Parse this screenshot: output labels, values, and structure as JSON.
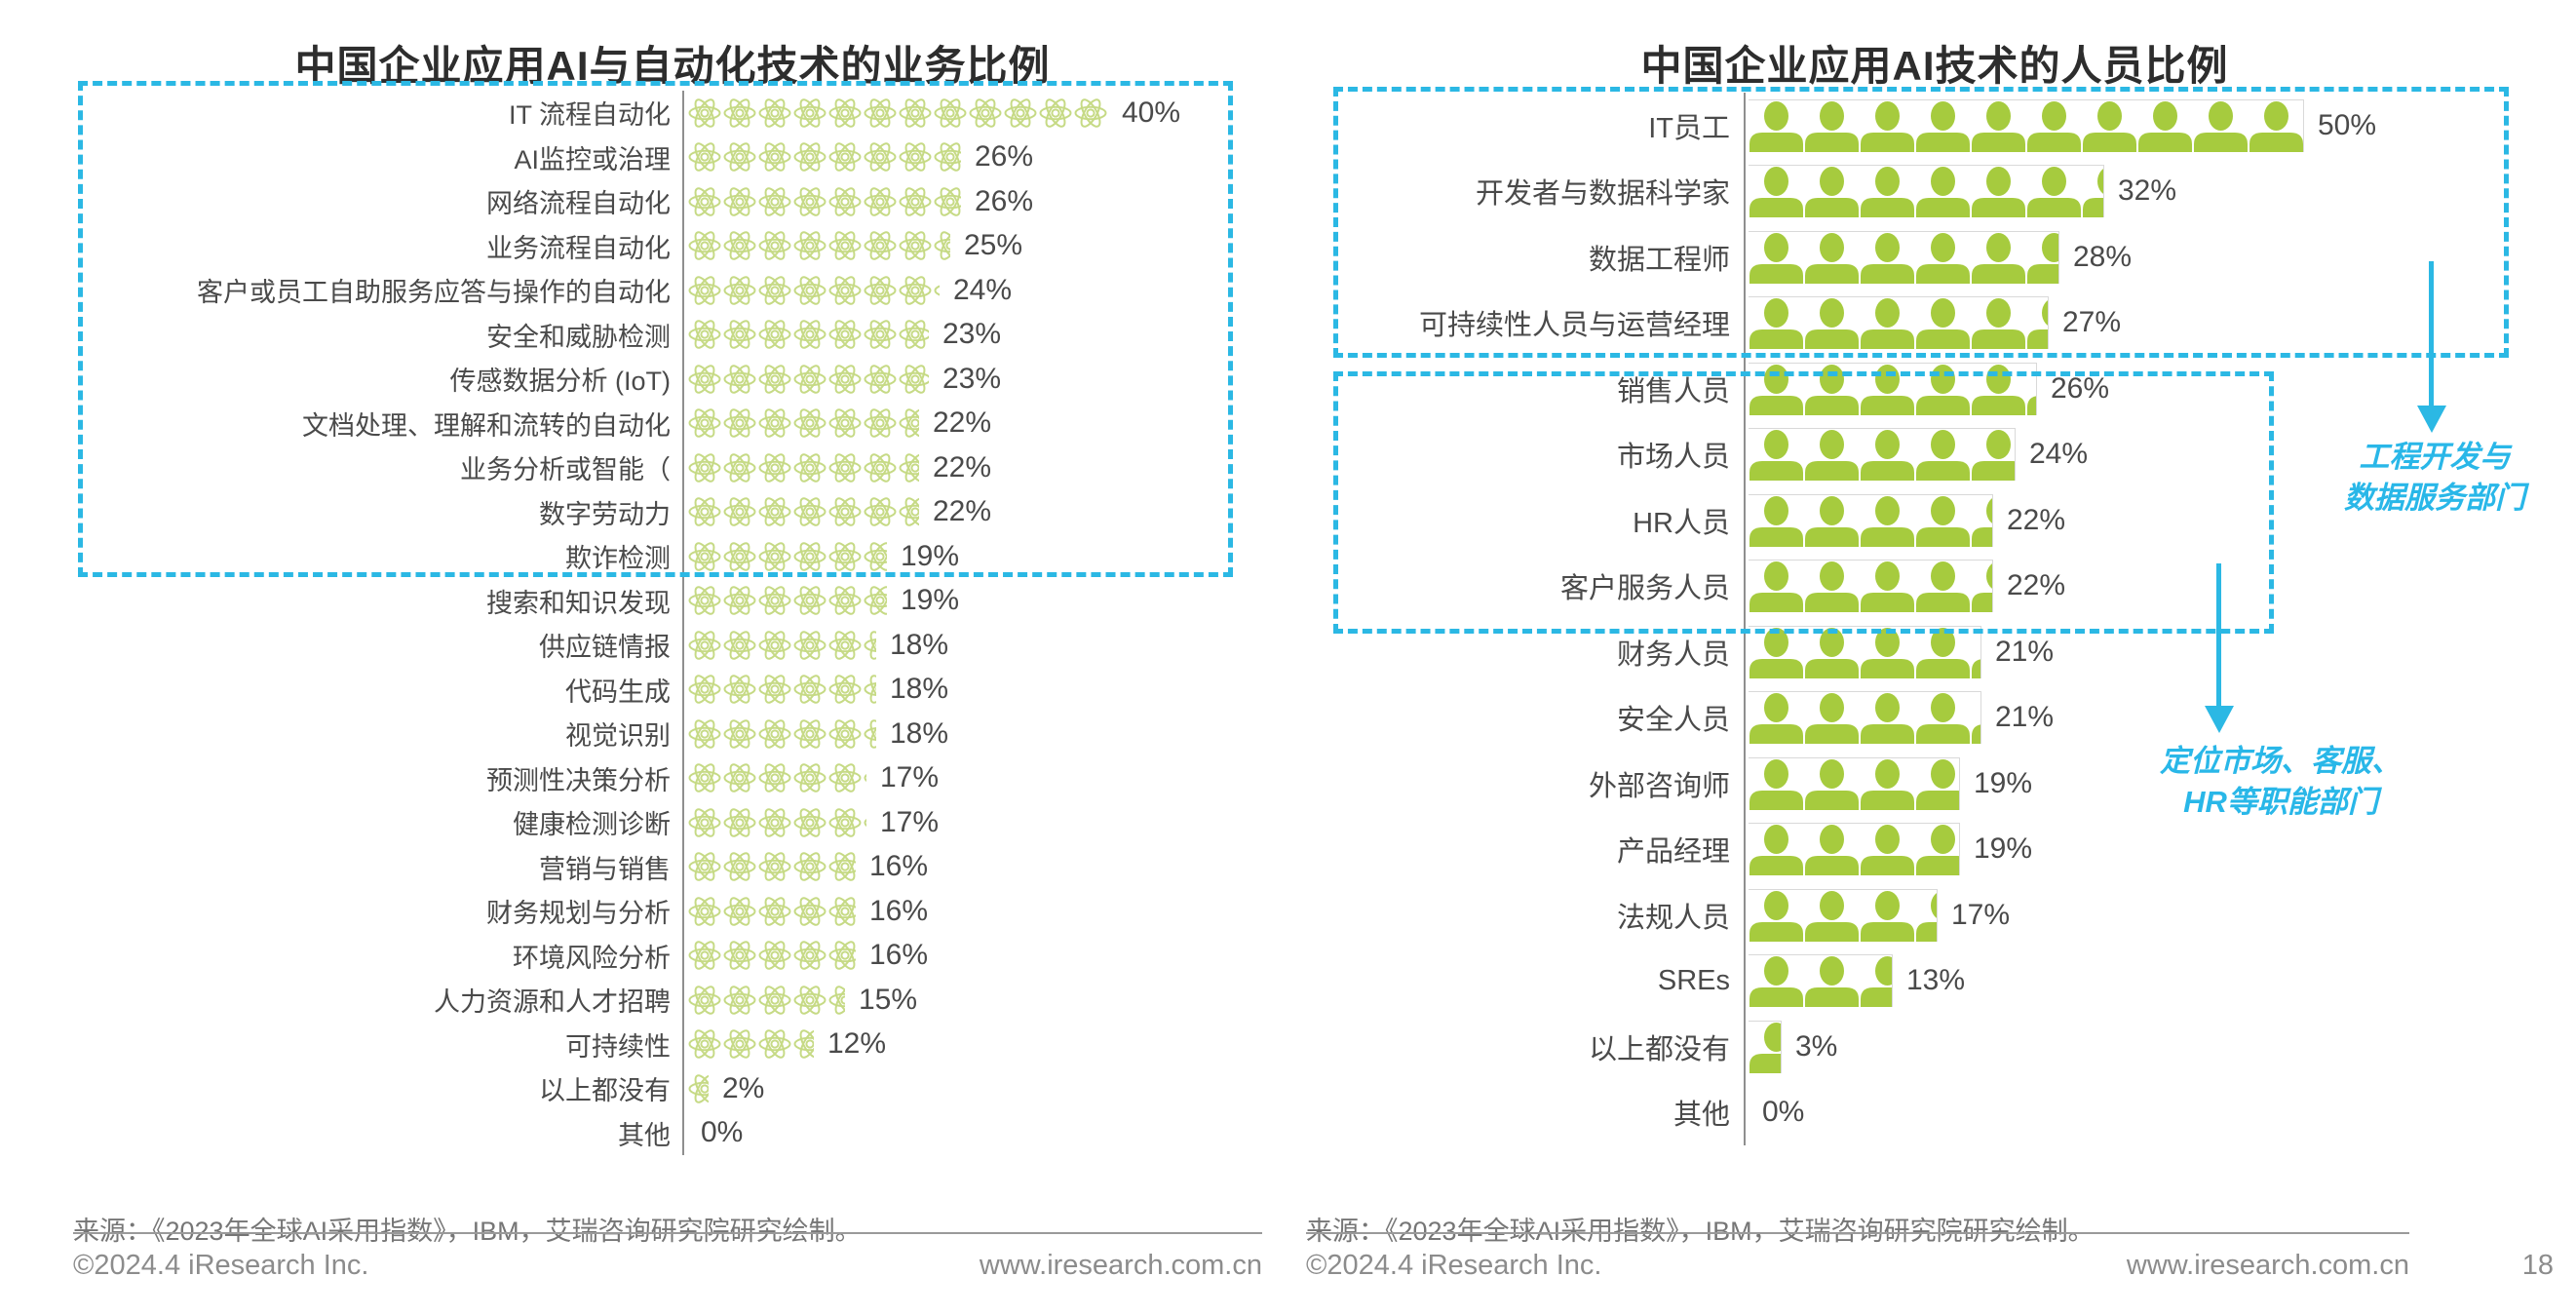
{
  "ui": {
    "left_panel": {
      "title": "中国企业应用AI与自动化技术的业务比例",
      "source": "来源：《2023年全球AI采用指数》，IBM，艾瑞咨询研究院研究绘制。",
      "copyright": "©2024.4 iResearch Inc.",
      "website": "www.iresearch.com.cn"
    },
    "right_panel": {
      "title": "中国企业应用AI技术的人员比例",
      "source": "来源：《2023年全球AI采用指数》，IBM，艾瑞咨询研究院研究绘制。",
      "copyright": "©2024.4 iResearch Inc.",
      "website": "www.iresearch.com.cn",
      "page_number": "18",
      "annotation_engineering": {
        "line1": "工程开发与",
        "line2": "数据服务部门"
      },
      "annotation_functional": {
        "line1": "定位市场、客服、",
        "line2": "HR等职能部门"
      }
    },
    "colors": {
      "accent_cyan": "#2bb8e4",
      "annotation_cyan": "#29b7e8",
      "person_green": "#a6cb3e",
      "atom_green": "#c6da85",
      "title_dark": "#2d2d2d",
      "label_gray": "#4a4a4a",
      "footer_gray": "#8c8c8c"
    }
  },
  "chart_data": [
    {
      "type": "bar",
      "orientation": "horizontal",
      "pictogram_icon": "atom",
      "title": "中国企业应用AI与自动化技术的业务比例",
      "unit": "%",
      "xlim": [
        0,
        45
      ],
      "legend": "none",
      "grid": false,
      "categories": [
        "IT 流程自动化",
        "AI监控或治理",
        "网络流程自动化",
        "业务流程自动化",
        "客户或员工自助服务应答与操作的自动化",
        "安全和威胁检测",
        "传感数据分析 (IoT)",
        "文档处理、理解和流转的自动化",
        "业务分析或智能（",
        "数字劳动力",
        "欺诈检测",
        "搜索和知识发现",
        "供应链情报",
        "代码生成",
        "视觉识别",
        "预测性决策分析",
        "健康检测诊断",
        "营销与销售",
        "财务规划与分析",
        "环境风险分析",
        "人力资源和人才招聘",
        "可持续性",
        "以上都没有",
        "其他"
      ],
      "values": [
        40,
        26,
        26,
        25,
        24,
        23,
        23,
        22,
        22,
        22,
        19,
        19,
        18,
        18,
        18,
        17,
        17,
        16,
        16,
        16,
        15,
        12,
        2,
        0
      ],
      "value_labels": [
        "40%",
        "26%",
        "26%",
        "25%",
        "24%",
        "23%",
        "23%",
        "22%",
        "22%",
        "22%",
        "19%",
        "19%",
        "18%",
        "18%",
        "18%",
        "17%",
        "17%",
        "16%",
        "16%",
        "16%",
        "15%",
        "12%",
        "2%",
        "0%"
      ],
      "highlight_box": {
        "first_row": 0,
        "last_row": 9
      }
    },
    {
      "type": "bar",
      "orientation": "horizontal",
      "pictogram_icon": "person",
      "title": "中国企业应用AI技术的人员比例",
      "unit": "%",
      "xlim": [
        0,
        55
      ],
      "legend": "none",
      "grid": false,
      "categories": [
        "IT员工",
        "开发者与数据科学家",
        "数据工程师",
        "可持续性人员与运营经理",
        "销售人员",
        "市场人员",
        "HR人员",
        "客户服务人员",
        "财务人员",
        "安全人员",
        "外部咨询师",
        "产品经理",
        "法规人员",
        "SREs",
        "以上都没有",
        "其他"
      ],
      "values": [
        50,
        32,
        28,
        27,
        26,
        24,
        22,
        22,
        21,
        21,
        19,
        19,
        17,
        13,
        3,
        0
      ],
      "value_labels": [
        "50%",
        "32%",
        "28%",
        "27%",
        "26%",
        "24%",
        "22%",
        "22%",
        "21%",
        "21%",
        "19%",
        "19%",
        "17%",
        "13%",
        "3%",
        "0%"
      ],
      "highlight_boxes": [
        {
          "first_row": 0,
          "last_row": 3,
          "note": "工程开发与数据服务部门"
        },
        {
          "first_row": 4,
          "last_row": 7,
          "note": "定位市场、客服、HR等职能部门"
        }
      ]
    }
  ]
}
